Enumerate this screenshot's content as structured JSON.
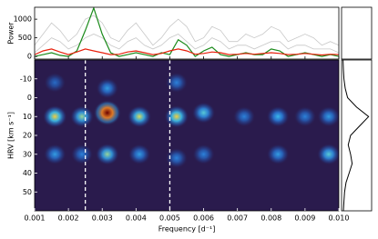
{
  "chart_data": [
    {
      "type": "line",
      "ylabel": "Power",
      "xlim": [
        0.001,
        0.01
      ],
      "ylim": [
        -70,
        1320
      ],
      "yticks": [
        0,
        500,
        1000
      ],
      "x": [
        0.001,
        0.00125,
        0.0015,
        0.00175,
        0.002,
        0.00225,
        0.0025,
        0.00275,
        0.003,
        0.00325,
        0.0035,
        0.00375,
        0.004,
        0.00425,
        0.0045,
        0.00475,
        0.005,
        0.00525,
        0.0055,
        0.00575,
        0.006,
        0.00625,
        0.0065,
        0.00675,
        0.007,
        0.00725,
        0.0075,
        0.00775,
        0.008,
        0.00825,
        0.0085,
        0.00875,
        0.009,
        0.00925,
        0.0095,
        0.00975,
        0.01
      ],
      "series": [
        {
          "color": "#c8c8c8",
          "values": [
            300,
            600,
            900,
            700,
            400,
            600,
            1000,
            1100,
            900,
            500,
            400,
            700,
            900,
            600,
            300,
            500,
            800,
            1000,
            800,
            400,
            500,
            800,
            700,
            400,
            400,
            600,
            500,
            600,
            800,
            700,
            400,
            500,
            600,
            500,
            300,
            400,
            300
          ]
        },
        {
          "color": "#c8c8c8",
          "values": [
            100,
            300,
            500,
            400,
            200,
            300,
            500,
            600,
            500,
            300,
            200,
            400,
            500,
            300,
            200,
            300,
            500,
            600,
            400,
            200,
            300,
            500,
            400,
            200,
            300,
            300,
            200,
            300,
            400,
            400,
            200,
            300,
            300,
            200,
            200,
            200,
            100
          ]
        },
        {
          "color": "#1a8a1a",
          "values": [
            0,
            50,
            100,
            30,
            0,
            150,
            700,
            1300,
            600,
            100,
            0,
            50,
            100,
            50,
            0,
            100,
            50,
            450,
            300,
            0,
            150,
            250,
            50,
            0,
            50,
            100,
            50,
            50,
            200,
            150,
            0,
            50,
            100,
            50,
            0,
            50,
            0
          ]
        },
        {
          "color": "#e8200c",
          "values": [
            50,
            150,
            200,
            120,
            50,
            120,
            200,
            150,
            100,
            50,
            60,
            120,
            150,
            100,
            50,
            80,
            150,
            200,
            150,
            60,
            80,
            120,
            100,
            50,
            60,
            80,
            60,
            80,
            100,
            80,
            50,
            60,
            80,
            60,
            40,
            60,
            50
          ]
        }
      ]
    },
    {
      "type": "heatmap",
      "xlabel": "Frequency [d⁻¹]",
      "ylabel": "HRV [km s⁻¹]",
      "xlim": [
        0.001,
        0.01
      ],
      "ylim": [
        -20,
        60
      ],
      "y_inverted": true,
      "xticks": [
        0.001,
        0.002,
        0.003,
        0.004,
        0.005,
        0.006,
        0.007,
        0.008,
        0.009,
        {
          "value": 0.01,
          "label": "0.010"
        }
      ],
      "yticks": [
        -10,
        0,
        10,
        20,
        30,
        40,
        50
      ],
      "vlines": [
        0.0025,
        0.005
      ],
      "blobs": [
        {
          "freq": 0.0016,
          "hrv": 10,
          "level": 0.6
        },
        {
          "freq": 0.0016,
          "hrv": 30,
          "level": 0.35
        },
        {
          "freq": 0.0016,
          "hrv": -8,
          "level": 0.25
        },
        {
          "freq": 0.0024,
          "hrv": 10,
          "level": 0.5
        },
        {
          "freq": 0.0024,
          "hrv": 30,
          "level": 0.3
        },
        {
          "freq": 0.00315,
          "hrv": 8,
          "level": 1.0
        },
        {
          "freq": 0.00315,
          "hrv": 30,
          "level": 0.5
        },
        {
          "freq": 0.00315,
          "hrv": -5,
          "level": 0.35
        },
        {
          "freq": 0.0041,
          "hrv": 10,
          "level": 0.55
        },
        {
          "freq": 0.0041,
          "hrv": 30,
          "level": 0.35
        },
        {
          "freq": 0.0052,
          "hrv": 10,
          "level": 0.6
        },
        {
          "freq": 0.0052,
          "hrv": 32,
          "level": 0.3
        },
        {
          "freq": 0.0052,
          "hrv": -8,
          "level": 0.3
        },
        {
          "freq": 0.006,
          "hrv": 8,
          "level": 0.45
        },
        {
          "freq": 0.006,
          "hrv": 30,
          "level": 0.3
        },
        {
          "freq": 0.0072,
          "hrv": 10,
          "level": 0.3
        },
        {
          "freq": 0.0082,
          "hrv": 10,
          "level": 0.4
        },
        {
          "freq": 0.0082,
          "hrv": 30,
          "level": 0.35
        },
        {
          "freq": 0.009,
          "hrv": 10,
          "level": 0.3
        },
        {
          "freq": 0.0097,
          "hrv": 10,
          "level": 0.35
        },
        {
          "freq": 0.0097,
          "hrv": 30,
          "level": 0.45
        }
      ]
    },
    {
      "type": "profile",
      "color": "#000000",
      "xlim": [
        0,
        1
      ],
      "hrv": [
        -20,
        -15,
        -10,
        -5,
        0,
        5,
        10,
        15,
        20,
        25,
        30,
        35,
        40,
        45,
        50,
        55,
        60
      ],
      "values": [
        0.05,
        0.06,
        0.08,
        0.12,
        0.2,
        0.5,
        0.9,
        0.6,
        0.3,
        0.22,
        0.3,
        0.35,
        0.25,
        0.15,
        0.1,
        0.08,
        0.06
      ]
    }
  ]
}
